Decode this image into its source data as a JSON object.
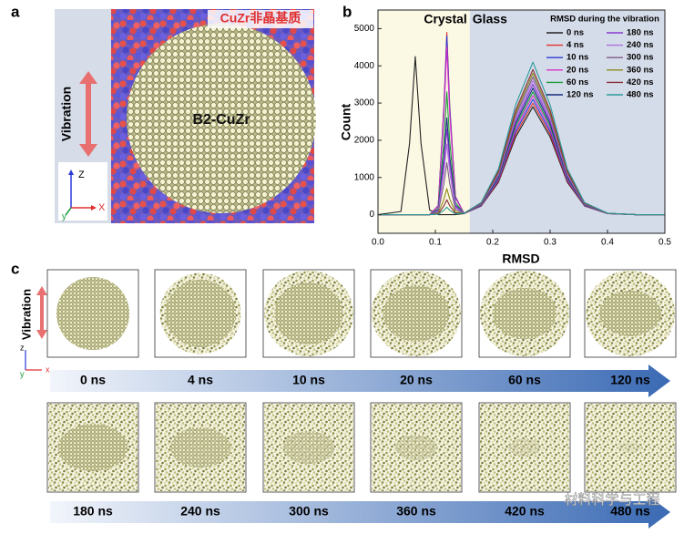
{
  "panel_labels": [
    "a",
    "b",
    "c"
  ],
  "panel_a": {
    "matrix_label": "CuZr非晶基质",
    "crystal_label": "B2-CuZr",
    "vibration_label": "Vibration",
    "axes": [
      "Z",
      "X",
      "y"
    ]
  },
  "chart_data": {
    "type": "line",
    "x_label": "RMSD",
    "y_label": "Count",
    "shaded_regions": [
      {
        "label": "Crystal",
        "xlim": [
          0,
          0.16
        ],
        "color": "#fbf8e4"
      },
      {
        "label": "Glass",
        "xlim": [
          0.16,
          0.5
        ],
        "color": "#d5dce9"
      }
    ],
    "legend_title": "RMSD during the vibration",
    "legend": "upper right",
    "x": [
      0,
      0.04,
      0.055,
      0.065,
      0.075,
      0.09,
      0.105,
      0.115,
      0.12,
      0.125,
      0.135,
      0.15,
      0.18,
      0.21,
      0.24,
      0.27,
      0.3,
      0.33,
      0.36,
      0.4,
      0.45,
      0.5
    ],
    "xlim": [
      0,
      0.5
    ],
    "xticks": [
      {
        "value": 0,
        "label": "0.0"
      },
      0.1,
      0.2,
      0.3,
      0.4,
      0.5
    ],
    "ylim": [
      -500,
      5500
    ],
    "yticks": [
      0,
      1000,
      2000,
      3000,
      4000,
      5000
    ],
    "series": [
      {
        "name": "0 ns",
        "color": "#222222",
        "values": [
          0,
          85,
          1913,
          4250,
          1913,
          128,
          0,
          0,
          0,
          0,
          0,
          29,
          232,
          870,
          2088,
          2900,
          2088,
          870,
          232,
          29,
          0,
          0
        ]
      },
      {
        "name": "4 ns",
        "color": "#e0302a",
        "values": [
          0,
          0,
          0,
          0,
          0,
          0,
          245,
          2940,
          4900,
          2940,
          490,
          30,
          240,
          900,
          2160,
          3000,
          2160,
          900,
          240,
          30,
          0,
          0
        ]
      },
      {
        "name": "10 ns",
        "color": "#2a3ad8",
        "values": [
          0,
          0,
          0,
          0,
          0,
          0,
          240,
          2880,
          4800,
          2880,
          480,
          31,
          248,
          930,
          2232,
          3100,
          2232,
          930,
          248,
          31,
          0,
          0
        ]
      },
      {
        "name": "20 ns",
        "color": "#d830c8",
        "values": [
          0,
          0,
          0,
          0,
          0,
          0,
          225,
          2700,
          4500,
          2700,
          450,
          32,
          256,
          960,
          2304,
          3200,
          2304,
          960,
          256,
          32,
          0,
          0
        ]
      },
      {
        "name": "60 ns",
        "color": "#1a9a3a",
        "values": [
          0,
          0,
          0,
          0,
          0,
          0,
          165,
          1980,
          3300,
          1980,
          330,
          33,
          264,
          990,
          2376,
          3300,
          2376,
          990,
          264,
          33,
          0,
          0
        ]
      },
      {
        "name": "120 ns",
        "color": "#1a2a80",
        "values": [
          0,
          0,
          0,
          0,
          0,
          0,
          130,
          1560,
          2600,
          1560,
          260,
          34,
          272,
          1020,
          2448,
          3400,
          2448,
          1020,
          272,
          34,
          0,
          0
        ]
      },
      {
        "name": "180 ns",
        "color": "#8a3ad0",
        "values": [
          0,
          0,
          0,
          0,
          0,
          0,
          115,
          1380,
          2300,
          1380,
          230,
          35,
          280,
          1050,
          2520,
          3500,
          2520,
          1050,
          280,
          35,
          0,
          0
        ]
      },
      {
        "name": "240 ns",
        "color": "#b070e0",
        "values": [
          0,
          0,
          0,
          0,
          0,
          0,
          95,
          1140,
          1900,
          1140,
          190,
          36,
          288,
          1080,
          2592,
          3600,
          2592,
          1080,
          288,
          36,
          0,
          0
        ]
      },
      {
        "name": "300 ns",
        "color": "#7a5a8a",
        "values": [
          0,
          0,
          0,
          0,
          0,
          0,
          70,
          840,
          1400,
          840,
          140,
          37,
          296,
          1110,
          2664,
          3700,
          2664,
          1110,
          296,
          37,
          0,
          0
        ]
      },
      {
        "name": "360 ns",
        "color": "#8a8a1a",
        "values": [
          0,
          0,
          0,
          0,
          0,
          0,
          35,
          420,
          700,
          420,
          70,
          38,
          304,
          1140,
          2736,
          3800,
          2736,
          1140,
          304,
          38,
          0,
          0
        ]
      },
      {
        "name": "420 ns",
        "color": "#8a2a3a",
        "values": [
          0,
          0,
          0,
          0,
          0,
          0,
          20,
          240,
          400,
          240,
          40,
          39,
          312,
          1170,
          2808,
          3900,
          2808,
          1170,
          312,
          39,
          0,
          0
        ]
      },
      {
        "name": "480 ns",
        "color": "#2a9a9a",
        "values": [
          0,
          0,
          0,
          0,
          0,
          0,
          10,
          120,
          200,
          120,
          20,
          41,
          328,
          1230,
          2952,
          4100,
          2952,
          1230,
          328,
          41,
          0,
          0
        ]
      }
    ]
  },
  "panel_c": {
    "vibration_label": "Vibration",
    "axes": [
      "z",
      "x",
      "y"
    ],
    "times": [
      "0 ns",
      "4 ns",
      "10 ns",
      "20 ns",
      "60 ns",
      "120 ns",
      "180 ns",
      "240 ns",
      "300 ns",
      "360 ns",
      "420 ns",
      "480 ns"
    ]
  },
  "watermark": "材料科学与工程"
}
